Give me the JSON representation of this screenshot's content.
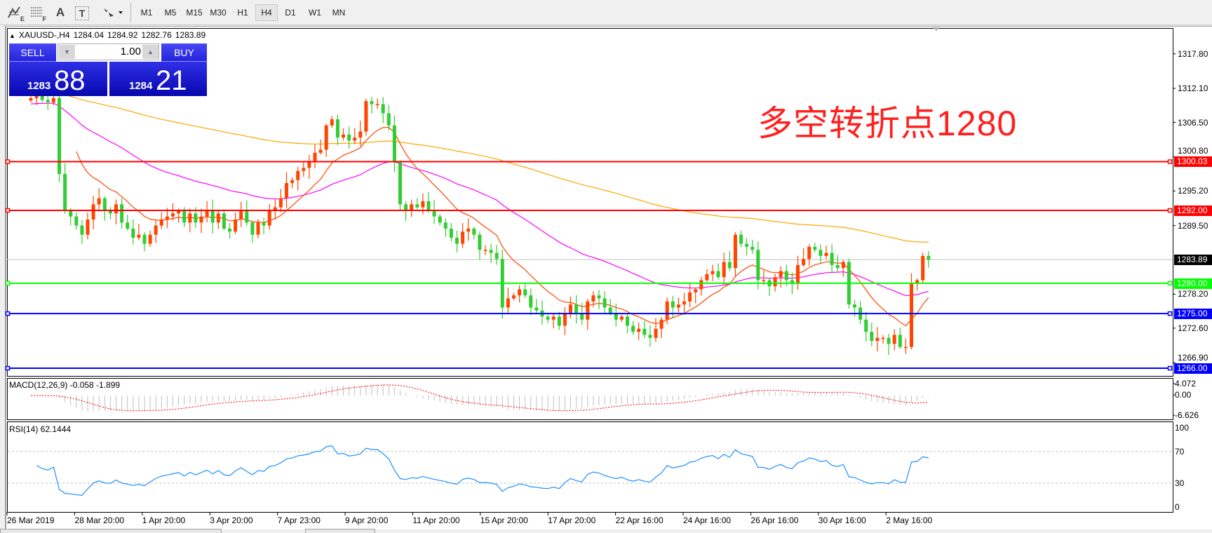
{
  "toolbar": {
    "tools": [
      {
        "icon": "line-studies-icon",
        "label": "E"
      },
      {
        "icon": "fibonacci-grid-icon",
        "label": "F"
      },
      {
        "icon": "text-icon",
        "label": "A"
      },
      {
        "icon": "text-label-icon",
        "label": "T"
      },
      {
        "icon": "arrows-dropdown-icon",
        "label": ""
      }
    ],
    "timeframes": [
      "M1",
      "M5",
      "M15",
      "M30",
      "H1",
      "H4",
      "D1",
      "W1",
      "MN"
    ],
    "active_timeframe": "H4"
  },
  "chart_header": {
    "symbol": "XAUUSD-,H4",
    "open": "1284.04",
    "high": "1284.92",
    "low": "1282.76",
    "close": "1283.89"
  },
  "trade_panel": {
    "sell_label": "SELL",
    "buy_label": "BUY",
    "volume": "1.00",
    "sell_price_main": "1283",
    "sell_price_pips": "88",
    "buy_price_main": "1284",
    "buy_price_pips": "21"
  },
  "annotation": "多空转折点1280",
  "chart_data": {
    "type": "candlestick",
    "timeframe": "H4",
    "closes": [
      1310.5,
      1311,
      1310.2,
      1309.8,
      1310.5,
      1298,
      1292,
      1291,
      1289.5,
      1288,
      1290.5,
      1293,
      1294,
      1292,
      1291.5,
      1293,
      1290,
      1289,
      1287.5,
      1288,
      1286.5,
      1288,
      1289.5,
      1290.5,
      1291,
      1291.5,
      1292,
      1290,
      1291.5,
      1290,
      1291,
      1292,
      1290,
      1291.5,
      1289,
      1288.5,
      1290.5,
      1292,
      1290,
      1288,
      1290,
      1289.5,
      1292,
      1292.5,
      1294,
      1296.5,
      1297,
      1298.5,
      1299,
      1300,
      1301.5,
      1302,
      1306,
      1307,
      1304,
      1304.5,
      1303.5,
      1304,
      1305,
      1310,
      1309.5,
      1309.5,
      1308,
      1306,
      1300,
      1293,
      1292,
      1293,
      1292.5,
      1293.5,
      1292,
      1291,
      1290,
      1289,
      1287.5,
      1286.5,
      1288.5,
      1289,
      1288,
      1285.5,
      1285.5,
      1285,
      1284,
      1276,
      1277.5,
      1278,
      1279,
      1278,
      1276,
      1275.5,
      1274.5,
      1274,
      1274.5,
      1273,
      1275,
      1276.5,
      1275,
      1274,
      1277,
      1278,
      1277.5,
      1276,
      1275,
      1274,
      1274.5,
      1273,
      1272,
      1272.5,
      1271.5,
      1271,
      1272.5,
      1274,
      1277,
      1276,
      1276.5,
      1277,
      1278.5,
      1279,
      1280.5,
      1281.5,
      1282,
      1281,
      1283.5,
      1282.5,
      1288,
      1286.5,
      1286,
      1285.5,
      1280.5,
      1280.5,
      1279.5,
      1281,
      1282,
      1280.5,
      1280,
      1283,
      1284,
      1286,
      1285.5,
      1284.5,
      1285,
      1283,
      1282.5,
      1283.5,
      1276.5,
      1276,
      1274,
      1272,
      1270.5,
      1271,
      1271,
      1270,
      1271.5,
      1269.5,
      1269.5,
      1280,
      1280.5,
      1284.5,
      1283.89
    ],
    "price_axis_ticks": [
      "1317.80",
      "1312.10",
      "1306.50",
      "1300.80",
      "1295.20",
      "1289.50",
      "1278.20",
      "1272.60",
      "1266.90"
    ],
    "current_price": "1283.89",
    "levels": [
      {
        "price": "1300.03",
        "color": "#ff0000"
      },
      {
        "price": "1292.00",
        "color": "#ff0000"
      },
      {
        "price": "1280.00",
        "color": "#00ff00"
      },
      {
        "price": "1275.00",
        "color": "#0000ff"
      },
      {
        "price": "1266.00",
        "color": "#0000ff"
      }
    ],
    "date_labels": [
      "26 Mar 2019",
      "28 Mar 20:00",
      "1 Apr 20:00",
      "3 Apr 20:00",
      "7 Apr 23:00",
      "9 Apr 20:00",
      "11 Apr 20:00",
      "15 Apr 20:00",
      "17 Apr 20:00",
      "22 Apr 16:00",
      "24 Apr 16:00",
      "26 Apr 16:00",
      "30 Apr 16:00",
      "2 May 16:00"
    ],
    "colors": {
      "candle_up": "#ff4500",
      "candle_down": "#32cd32",
      "ma_fast": "#ff4500",
      "ma_mid": "#ff00ff",
      "ma_slow": "#ffa500",
      "current_line": "#c0c0c0",
      "macd_hist": "#c0c0c0",
      "macd_signal": "#ff0000",
      "rsi": "#1e90ff"
    },
    "macd": {
      "label": "MACD(12,26,9) -0.058 -1.899",
      "ticks": [
        "4.072",
        "0.00",
        "-6.626"
      ]
    },
    "rsi": {
      "label": "RSI(14) 62.1444",
      "ticks": [
        "100",
        "70",
        "30",
        "0"
      ],
      "levels": [
        70,
        30
      ]
    }
  }
}
